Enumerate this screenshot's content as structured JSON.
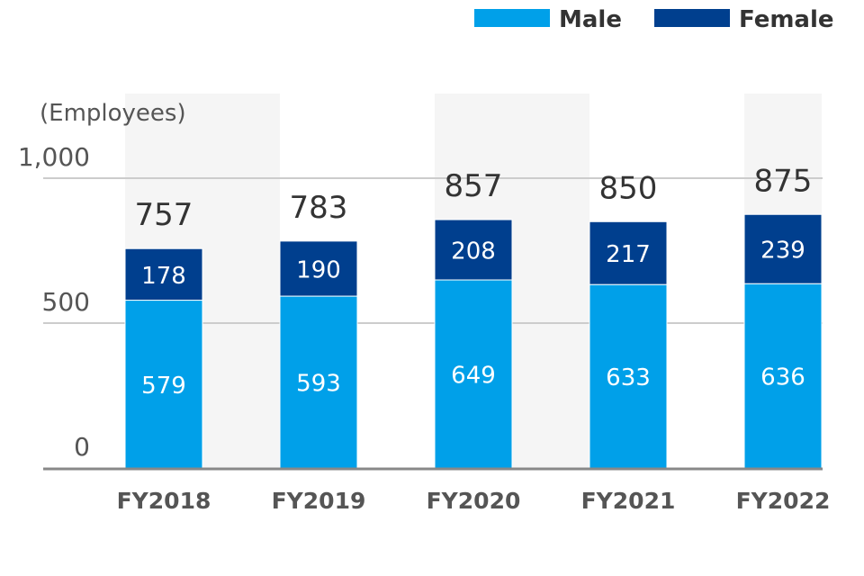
{
  "chart_data": {
    "type": "bar",
    "stacked": true,
    "unit_label": "(Employees)",
    "categories": [
      "FY2018",
      "FY2019",
      "FY2020",
      "FY2021",
      "FY2022"
    ],
    "series": [
      {
        "name": "Male",
        "color": "#00a0e9",
        "values": [
          579,
          593,
          649,
          633,
          636
        ]
      },
      {
        "name": "Female",
        "color": "#003f8e",
        "values": [
          178,
          190,
          208,
          217,
          239
        ]
      }
    ],
    "totals": [
      757,
      783,
      857,
      850,
      875
    ],
    "y_ticks": [
      "0",
      "500",
      "1,000"
    ],
    "ylim": [
      0,
      1000
    ],
    "grid": true,
    "legend_position": "top-right",
    "colors": {
      "grid": "#cccccc",
      "axis": "#888888",
      "band": "#f5f5f5"
    }
  }
}
